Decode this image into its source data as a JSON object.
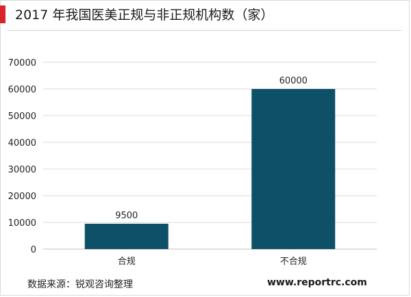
{
  "header": {
    "title": "2017 年我国医美正规与非正规机构数（家）"
  },
  "footer": {
    "source": "数据来源：锐观咨询整理",
    "website": "www.reportrc.com"
  },
  "colors": {
    "accent": "#d9252a",
    "bar": "#0e5068",
    "grid": "#d9d9d9"
  },
  "chart_data": {
    "type": "bar",
    "title": "2017 年我国医美正规与非正规机构数（家）",
    "categories": [
      "合规",
      "不合规"
    ],
    "values": [
      9500,
      60000
    ],
    "data_labels": [
      "9500",
      "60000"
    ],
    "ylim": [
      0,
      70000
    ],
    "yticks": [
      0,
      10000,
      20000,
      30000,
      40000,
      50000,
      60000,
      70000
    ],
    "ytick_labels": [
      "0",
      "10000",
      "20000",
      "30000",
      "40000",
      "50000",
      "60000",
      "70000"
    ],
    "xlabel": "",
    "ylabel": "",
    "grid": true,
    "legend": "none"
  }
}
